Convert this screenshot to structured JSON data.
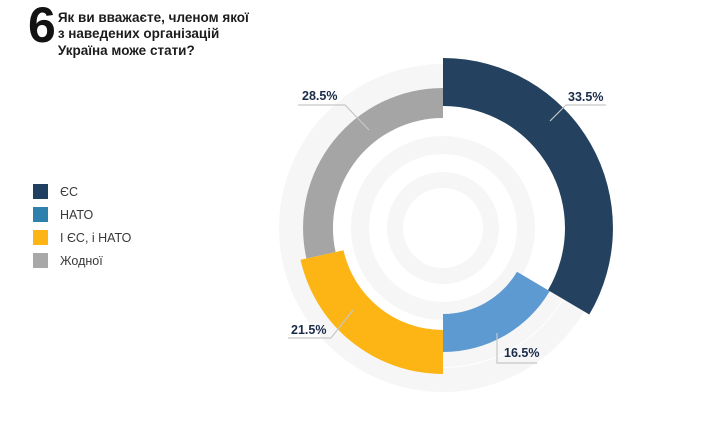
{
  "header": {
    "number": "6",
    "title": "Як ви вважаєте, членом якої\nз наведених організацій\nУкраїна може стати?"
  },
  "legend": {
    "items": [
      {
        "label": "ЄС",
        "color": "#1f4060"
      },
      {
        "label": "НАТО",
        "color": "#2e81ad"
      },
      {
        "label": "І ЄС, і НАТО",
        "color": "#fcb515"
      },
      {
        "label": "Жодної",
        "color": "#a8a8a8"
      }
    ]
  },
  "chart_data": {
    "type": "pie",
    "style": "donut-variable-radius",
    "title": "Як ви вважаєте, членом якої з наведених організацій Україна може стати?",
    "unit": "%",
    "rotation": "clockwise-from-top",
    "slices": [
      {
        "label": "ЄС",
        "value": 33.5,
        "display": "33.5%",
        "color": "#24425f"
      },
      {
        "label": "НАТО",
        "value": 16.5,
        "display": "16.5%",
        "color": "#5e9ad2"
      },
      {
        "label": "І ЄС, і НАТО",
        "value": 21.5,
        "display": "21.5%",
        "color": "#fcb515"
      },
      {
        "label": "Жодної",
        "value": 28.5,
        "display": "28.5%",
        "color": "#a5a5a6"
      }
    ],
    "label_color": "#1a2b49",
    "leader_line_color": "#c7c7c7",
    "backdrop_ring_color": "#f6f6f7"
  }
}
